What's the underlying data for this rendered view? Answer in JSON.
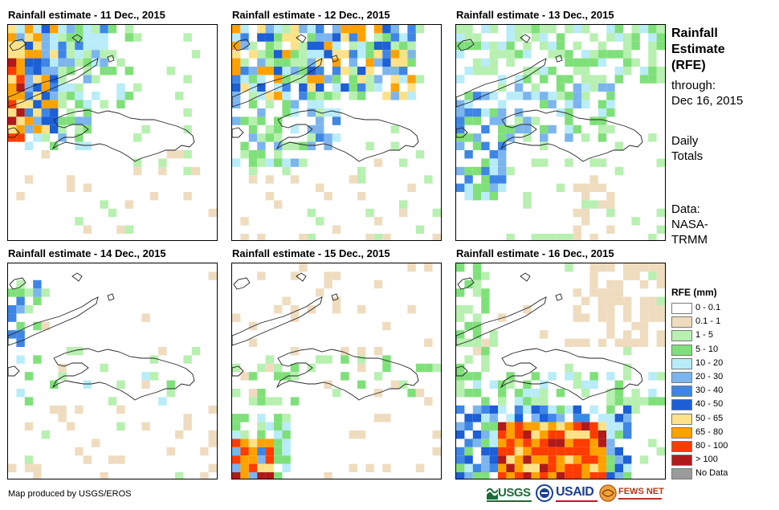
{
  "panels": [
    {
      "title": "Rainfall estimate - 11 Dec., 2015"
    },
    {
      "title": "Rainfall estimate - 12 Dec., 2015"
    },
    {
      "title": "Rainfall estimate - 13 Dec., 2015"
    },
    {
      "title": "Rainfall estimate - 14 Dec., 2015"
    },
    {
      "title": "Rainfall estimate - 15 Dec., 2015"
    },
    {
      "title": "Rainfall estimate - 16 Dec., 2015"
    }
  ],
  "sidebar": {
    "title_lines": [
      "Rainfall",
      "Estimate",
      "(RFE)"
    ],
    "through_lines": [
      "through:",
      "Dec 16, 2015"
    ],
    "totals_lines": [
      "Daily",
      "Totals"
    ],
    "source_lines": [
      "Data:",
      "NASA-",
      "TRMM"
    ]
  },
  "legend": {
    "title": "RFE (mm)",
    "items": [
      {
        "label": "0 - 0.1",
        "color": "#ffffff"
      },
      {
        "label": "0.1 - 1",
        "color": "#efdcbf"
      },
      {
        "label": "1 - 5",
        "color": "#b7f0b0"
      },
      {
        "label": "5 - 10",
        "color": "#7fe07a"
      },
      {
        "label": "10 - 20",
        "color": "#b8ecf8"
      },
      {
        "label": "20 - 30",
        "color": "#7cb5ee"
      },
      {
        "label": "30 - 40",
        "color": "#3e86e6"
      },
      {
        "label": "40 - 50",
        "color": "#1c5fd6"
      },
      {
        "label": "50 - 65",
        "color": "#ffe287"
      },
      {
        "label": "65 - 80",
        "color": "#ffa200"
      },
      {
        "label": "80 - 100",
        "color": "#ff3c00"
      },
      {
        "label": "> 100",
        "color": "#b01a1a"
      },
      {
        "label": "No Data",
        "color": "#9b9b9b"
      }
    ]
  },
  "footer": {
    "credit": "Map produced by USGS/EROS"
  },
  "logos": {
    "usgs": "USGS",
    "usaid": "USAID",
    "fewsnet": "FEWS NET"
  }
}
